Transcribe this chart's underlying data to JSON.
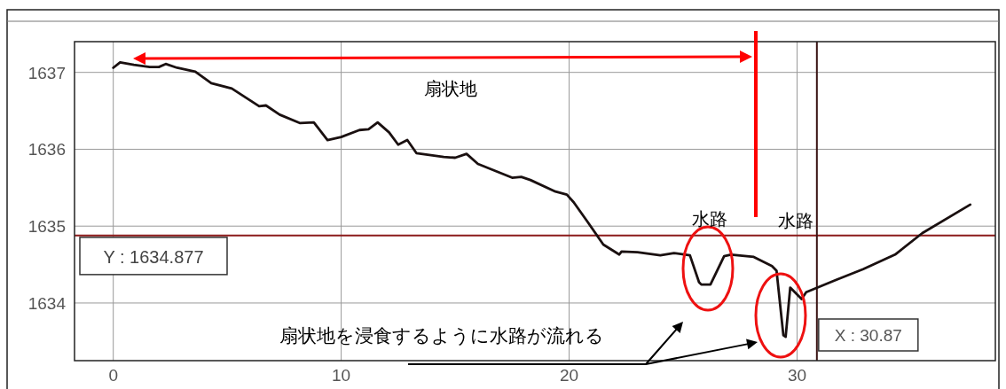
{
  "chart_data": {
    "type": "line",
    "color": "#1a1010",
    "xlim": [
      -1.7,
      38.7
    ],
    "ylim": [
      1633.25,
      1637.4
    ],
    "xticks": [
      0,
      10,
      20,
      30
    ],
    "yticks": [
      1634,
      1635,
      1636,
      1637
    ],
    "grid": true,
    "line_style": "solid",
    "marker": "none",
    "x": [
      0,
      0.3,
      0.9,
      1.6,
      2.0,
      2.3,
      2.8,
      3.6,
      4.3,
      5.2,
      6.4,
      6.7,
      7.3,
      8.2,
      8.8,
      9.4,
      10.0,
      10.8,
      11.2,
      11.6,
      12.1,
      12.5,
      12.9,
      13.3,
      14.5,
      15.0,
      15.5,
      16.0,
      17.5,
      17.9,
      18.3,
      19.4,
      19.9,
      20.2,
      20.8,
      21.5,
      22.2,
      22.3,
      23.0,
      24.0,
      24.6,
      25.3,
      25.7,
      25.8,
      26.2,
      26.8,
      27.1,
      28.1,
      28.9,
      29.1,
      29.4,
      29.5,
      29.7,
      30.2,
      30.4,
      31.7,
      32.9,
      34.3,
      35.5,
      37.6
    ],
    "values": [
      1637.06,
      1637.13,
      1637.1,
      1637.07,
      1637.07,
      1637.11,
      1637.06,
      1637.01,
      1636.86,
      1636.79,
      1636.56,
      1636.57,
      1636.45,
      1636.34,
      1636.35,
      1636.12,
      1636.16,
      1636.25,
      1636.26,
      1636.35,
      1636.22,
      1636.06,
      1636.12,
      1635.95,
      1635.9,
      1635.89,
      1635.94,
      1635.81,
      1635.63,
      1635.64,
      1635.6,
      1635.45,
      1635.41,
      1635.31,
      1635.06,
      1634.76,
      1634.63,
      1634.67,
      1634.66,
      1634.62,
      1634.65,
      1634.62,
      1634.27,
      1634.24,
      1634.24,
      1634.61,
      1634.63,
      1634.6,
      1634.48,
      1634.42,
      1633.58,
      1633.56,
      1634.2,
      1634.05,
      1634.14,
      1634.3,
      1634.44,
      1634.63,
      1634.91,
      1635.28
    ],
    "ref_lines": [
      {
        "axis": "y",
        "value": 1634.877,
        "label": "Y : 1634.877",
        "color": "#8b1a1a"
      },
      {
        "axis": "x",
        "value": 30.87,
        "label": "X : 30.87",
        "color": "#3a1414"
      }
    ],
    "annotations": [
      "扇状地",
      "水路",
      "水路",
      "扇状地を浸食するように水路が流れる"
    ]
  }
}
